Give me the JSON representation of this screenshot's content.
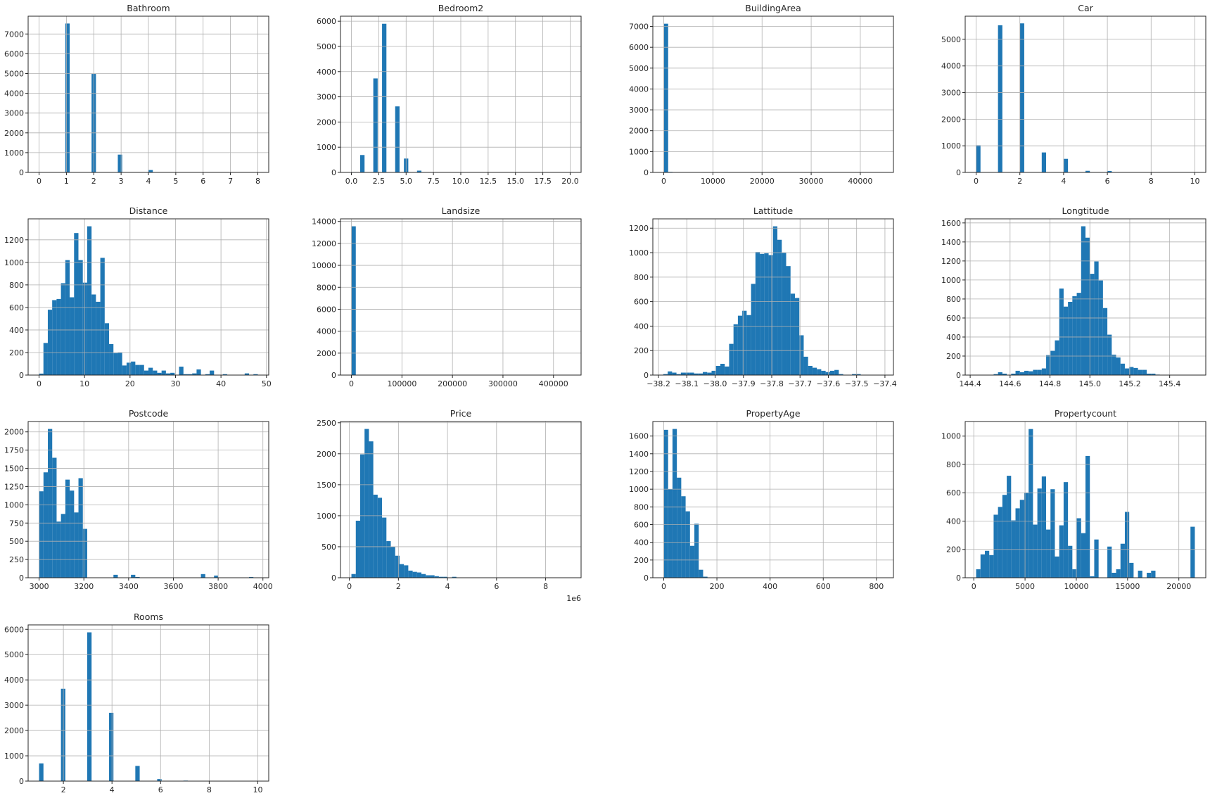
{
  "colors": {
    "bar": "#1f77b4",
    "grid": "#b0b0b0",
    "axis": "#262626",
    "background": "#ffffff"
  },
  "chart_data": [
    {
      "type": "bar",
      "title": "Bathroom",
      "bin_range": [
        0,
        8
      ],
      "bins": 50,
      "value_counts": [
        [
          1,
          7530
        ],
        [
          2,
          4980
        ],
        [
          3,
          900
        ],
        [
          4,
          120
        ],
        [
          5,
          6
        ],
        [
          6,
          3
        ],
        [
          7,
          1
        ],
        [
          8,
          1
        ]
      ],
      "xlim": [
        -0.4,
        8.4
      ],
      "ylim": [
        0,
        7900
      ],
      "xticks": [
        0,
        1,
        2,
        3,
        4,
        5,
        6,
        7,
        8
      ],
      "xtick_labels": [
        "0",
        "1",
        "2",
        "3",
        "4",
        "5",
        "6",
        "7",
        "8"
      ],
      "yticks": [
        0,
        1000,
        2000,
        3000,
        4000,
        5000,
        6000,
        7000
      ],
      "grid": true
    },
    {
      "type": "bar",
      "title": "Bedroom2",
      "bin_range": [
        0,
        20
      ],
      "bins": 50,
      "value_counts": [
        [
          0,
          15
        ],
        [
          1,
          690
        ],
        [
          2,
          3730
        ],
        [
          3,
          5900
        ],
        [
          4,
          2620
        ],
        [
          5,
          550
        ],
        [
          6,
          70
        ],
        [
          7,
          10
        ],
        [
          8,
          3
        ],
        [
          9,
          2
        ],
        [
          10,
          1
        ],
        [
          20,
          1
        ]
      ],
      "xlim": [
        -1,
        21
      ],
      "ylim": [
        0,
        6200
      ],
      "xticks": [
        0,
        2.5,
        5,
        7.5,
        10,
        12.5,
        15,
        17.5,
        20
      ],
      "xtick_labels": [
        "0.0",
        "2.5",
        "5.0",
        "7.5",
        "10.0",
        "12.5",
        "15.0",
        "17.5",
        "20.0"
      ],
      "yticks": [
        0,
        1000,
        2000,
        3000,
        4000,
        5000,
        6000
      ],
      "grid": true
    },
    {
      "type": "bar",
      "title": "BuildingArea",
      "bin_range": [
        0,
        44515
      ],
      "bins": 50,
      "counts": [
        7130,
        25,
        3,
        1,
        0,
        0,
        0,
        0,
        0,
        0,
        0,
        0,
        0,
        0,
        0,
        0,
        0,
        0,
        0,
        0,
        0,
        0,
        0,
        0,
        0,
        0,
        0,
        0,
        0,
        0,
        0,
        0,
        0,
        0,
        0,
        0,
        0,
        0,
        0,
        0,
        0,
        0,
        0,
        0,
        0,
        0,
        0,
        0,
        0,
        1
      ],
      "xlim": [
        -2226,
        46741
      ],
      "ylim": [
        0,
        7490
      ],
      "xticks": [
        0,
        10000,
        20000,
        30000,
        40000
      ],
      "xtick_labels": [
        "0",
        "10000",
        "20000",
        "30000",
        "40000"
      ],
      "yticks": [
        0,
        1000,
        2000,
        3000,
        4000,
        5000,
        6000,
        7000
      ],
      "grid": true
    },
    {
      "type": "bar",
      "title": "Car",
      "bin_range": [
        0,
        10
      ],
      "bins": 50,
      "value_counts": [
        [
          0,
          1020
        ],
        [
          1,
          5530
        ],
        [
          2,
          5600
        ],
        [
          3,
          750
        ],
        [
          4,
          510
        ],
        [
          5,
          60
        ],
        [
          6,
          55
        ],
        [
          7,
          10
        ],
        [
          8,
          8
        ],
        [
          9,
          1
        ],
        [
          10,
          3
        ]
      ],
      "xlim": [
        -0.5,
        10.5
      ],
      "ylim": [
        0,
        5870
      ],
      "xticks": [
        0,
        2,
        4,
        6,
        8,
        10
      ],
      "xtick_labels": [
        "0",
        "2",
        "4",
        "6",
        "8",
        "10"
      ],
      "yticks": [
        0,
        1000,
        2000,
        3000,
        4000,
        5000
      ],
      "grid": true
    },
    {
      "type": "bar",
      "title": "Distance",
      "bin_range": [
        0,
        48.1
      ],
      "bins": 50,
      "counts": [
        13,
        285,
        580,
        665,
        675,
        815,
        1020,
        690,
        1260,
        1020,
        820,
        1320,
        715,
        650,
        1040,
        460,
        275,
        195,
        200,
        85,
        110,
        120,
        90,
        90,
        40,
        65,
        40,
        20,
        40,
        15,
        20,
        0,
        75,
        8,
        8,
        15,
        50,
        0,
        8,
        40,
        0,
        0,
        8,
        0,
        0,
        0,
        0,
        15,
        0,
        8
      ],
      "xlim": [
        -2.4,
        50.5
      ],
      "ylim": [
        0,
        1386
      ],
      "xticks": [
        0,
        10,
        20,
        30,
        40,
        50
      ],
      "xtick_labels": [
        "0",
        "10",
        "20",
        "30",
        "40",
        "50"
      ],
      "yticks": [
        0,
        200,
        400,
        600,
        800,
        1000,
        1200
      ],
      "grid": true
    },
    {
      "type": "bar",
      "title": "Landsize",
      "bin_range": [
        0,
        433014
      ],
      "bins": 50,
      "counts": [
        13560,
        20,
        5,
        2,
        1,
        0,
        0,
        0,
        0,
        0,
        0,
        0,
        0,
        0,
        0,
        0,
        0,
        0,
        0,
        0,
        0,
        0,
        0,
        0,
        0,
        0,
        0,
        0,
        0,
        0,
        0,
        0,
        0,
        0,
        0,
        0,
        0,
        0,
        0,
        0,
        0,
        0,
        0,
        0,
        0,
        0,
        0,
        0,
        0,
        1
      ],
      "xlim": [
        -21650,
        454665
      ],
      "ylim": [
        0,
        14238
      ],
      "xticks": [
        0,
        100000,
        200000,
        300000,
        400000
      ],
      "xtick_labels": [
        "0",
        "100000",
        "200000",
        "300000",
        "400000"
      ],
      "yticks": [
        0,
        2000,
        4000,
        6000,
        8000,
        10000,
        12000,
        14000
      ],
      "grid": true
    },
    {
      "type": "bar",
      "title": "Lattitude",
      "bin_range": [
        -38.183,
        -37.408
      ],
      "bins": 50,
      "counts": [
        8,
        30,
        20,
        8,
        20,
        20,
        20,
        13,
        13,
        25,
        20,
        35,
        75,
        92,
        70,
        255,
        415,
        485,
        525,
        490,
        745,
        1005,
        990,
        995,
        980,
        1215,
        1105,
        1000,
        890,
        665,
        630,
        325,
        150,
        75,
        60,
        48,
        35,
        25,
        35,
        42,
        8,
        0,
        0,
        8,
        8,
        0,
        0,
        0,
        0,
        1
      ],
      "xlim": [
        -38.22,
        -37.37
      ],
      "ylim": [
        0,
        1276
      ],
      "xticks": [
        -38.2,
        -38.1,
        -38.0,
        -37.9,
        -37.8,
        -37.7,
        -37.6,
        -37.5,
        -37.4
      ],
      "xtick_labels": [
        "−38.2",
        "−38.1",
        "−38.0",
        "−37.9",
        "−37.8",
        "−37.7",
        "−37.6",
        "−37.5",
        "−37.4"
      ],
      "yticks": [
        0,
        200,
        400,
        600,
        800,
        1000,
        1200
      ],
      "grid": true
    },
    {
      "type": "bar",
      "title": "Longtitude",
      "bin_range": [
        144.43,
        145.526
      ],
      "bins": 50,
      "counts": [
        1,
        0,
        0,
        0,
        10,
        30,
        15,
        0,
        15,
        45,
        30,
        45,
        40,
        55,
        55,
        70,
        210,
        255,
        365,
        910,
        720,
        770,
        830,
        865,
        1565,
        1445,
        1065,
        1195,
        995,
        705,
        425,
        215,
        185,
        120,
        70,
        85,
        75,
        55,
        55,
        15,
        15,
        5,
        0,
        0,
        0,
        0,
        0,
        0,
        0,
        1
      ],
      "xlim": [
        144.375,
        145.581
      ],
      "ylim": [
        0,
        1643
      ],
      "xticks": [
        144.4,
        144.6,
        144.8,
        145.0,
        145.2,
        145.4
      ],
      "xtick_labels": [
        "144.4",
        "144.6",
        "144.8",
        "145.0",
        "145.2",
        "145.4"
      ],
      "yticks": [
        0,
        200,
        400,
        600,
        800,
        1000,
        1200,
        1400,
        1600
      ],
      "grid": true
    },
    {
      "type": "bar",
      "title": "Postcode",
      "bin_range": [
        3000,
        3977
      ],
      "bins": 50,
      "counts": [
        1185,
        1445,
        2040,
        1645,
        770,
        875,
        1345,
        1195,
        895,
        1365,
        670,
        0,
        0,
        0,
        0,
        0,
        0,
        40,
        0,
        0,
        0,
        40,
        10,
        0,
        0,
        0,
        0,
        0,
        0,
        0,
        0,
        0,
        0,
        0,
        0,
        0,
        0,
        50,
        0,
        0,
        30,
        0,
        0,
        0,
        0,
        0,
        0,
        0,
        10,
        0
      ],
      "xlim": [
        2951,
        4026
      ],
      "ylim": [
        0,
        2142
      ],
      "xticks": [
        3000,
        3200,
        3400,
        3600,
        3800,
        4000
      ],
      "xtick_labels": [
        "3000",
        "3200",
        "3400",
        "3600",
        "3800",
        "4000"
      ],
      "yticks": [
        0,
        250,
        500,
        750,
        1000,
        1250,
        1500,
        1750,
        2000
      ],
      "grid": true
    },
    {
      "type": "bar",
      "title": "Price",
      "bin_range": [
        85000,
        9000000
      ],
      "bins": 50,
      "counts": [
        60,
        920,
        1990,
        2400,
        2200,
        1340,
        1290,
        970,
        590,
        500,
        355,
        220,
        200,
        115,
        95,
        85,
        60,
        40,
        40,
        25,
        15,
        15,
        5,
        15,
        3,
        2,
        1,
        1,
        0,
        0,
        1,
        0,
        0,
        0,
        0,
        0,
        0,
        0,
        0,
        0,
        0,
        0,
        0,
        0,
        0,
        0,
        0,
        0,
        0,
        1
      ],
      "xlim": [
        -360750,
        9445750
      ],
      "ylim": [
        0,
        2520
      ],
      "xticks": [
        0,
        2000000,
        4000000,
        6000000,
        8000000
      ],
      "xtick_labels": [
        "0",
        "2",
        "4",
        "6",
        "8"
      ],
      "x_offset_label": "1e6",
      "yticks": [
        0,
        500,
        1000,
        1500,
        2000,
        2500
      ],
      "grid": true
    },
    {
      "type": "bar",
      "title": "PropertyAge",
      "bin_range": [
        0,
        823
      ],
      "bins": 50,
      "counts": [
        1670,
        1000,
        1680,
        1130,
        920,
        750,
        360,
        610,
        90,
        12,
        2,
        0,
        0,
        0,
        0,
        0,
        0,
        0,
        0,
        0,
        0,
        0,
        0,
        0,
        0,
        0,
        0,
        0,
        0,
        0,
        0,
        0,
        0,
        0,
        0,
        0,
        0,
        0,
        0,
        0,
        0,
        0,
        0,
        0,
        0,
        0,
        0,
        0,
        0,
        1
      ],
      "xlim": [
        -41,
        864
      ],
      "ylim": [
        0,
        1764
      ],
      "xticks": [
        0,
        200,
        400,
        600,
        800
      ],
      "xtick_labels": [
        "0",
        "200",
        "400",
        "600",
        "800"
      ],
      "yticks": [
        0,
        200,
        400,
        600,
        800,
        1000,
        1200,
        1400,
        1600
      ],
      "grid": true
    },
    {
      "type": "bar",
      "title": "Propertycount",
      "bin_range": [
        230,
        21560
      ],
      "bins": 50,
      "counts": [
        60,
        165,
        190,
        160,
        445,
        500,
        585,
        720,
        405,
        490,
        550,
        600,
        1050,
        375,
        630,
        715,
        340,
        625,
        150,
        370,
        675,
        225,
        60,
        420,
        315,
        860,
        10,
        270,
        0,
        0,
        220,
        35,
        60,
        240,
        465,
        105,
        0,
        50,
        0,
        35,
        50,
        0,
        0,
        0,
        0,
        0,
        0,
        0,
        0,
        360
      ],
      "xlim": [
        -837,
        22627
      ],
      "ylim": [
        0,
        1103
      ],
      "xticks": [
        0,
        5000,
        10000,
        15000,
        20000
      ],
      "xtick_labels": [
        "0",
        "5000",
        "10000",
        "15000",
        "20000"
      ],
      "yticks": [
        0,
        200,
        400,
        600,
        800,
        1000
      ],
      "grid": true
    },
    {
      "type": "bar",
      "title": "Rooms",
      "bin_range": [
        1,
        10
      ],
      "bins": 50,
      "value_counts": [
        [
          1,
          700
        ],
        [
          2,
          3650
        ],
        [
          3,
          5880
        ],
        [
          4,
          2700
        ],
        [
          5,
          600
        ],
        [
          6,
          80
        ],
        [
          7,
          20
        ],
        [
          8,
          8
        ],
        [
          10,
          1
        ]
      ],
      "xlim": [
        0.55,
        10.45
      ],
      "ylim": [
        0,
        6174
      ],
      "xticks": [
        2,
        4,
        6,
        8,
        10
      ],
      "xtick_labels": [
        "2",
        "4",
        "6",
        "8",
        "10"
      ],
      "yticks": [
        0,
        1000,
        2000,
        3000,
        4000,
        5000,
        6000
      ],
      "grid": true
    }
  ]
}
